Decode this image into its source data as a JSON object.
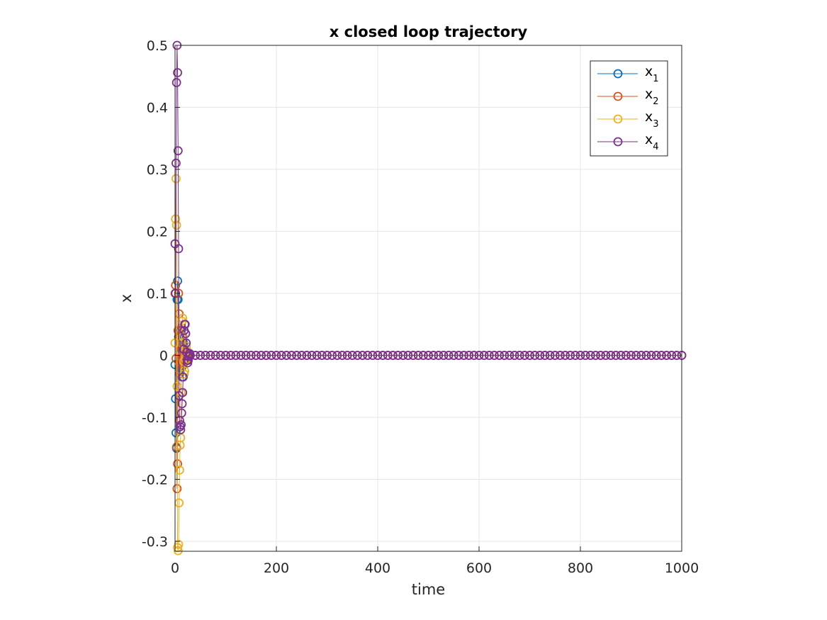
{
  "chart_data": {
    "type": "line",
    "title": "x closed loop trajectory",
    "xlabel": "time",
    "ylabel": "x",
    "xlim": [
      0,
      1000
    ],
    "ylim": [
      -0.316,
      0.5
    ],
    "xticks": [
      "0",
      "200",
      "400",
      "600",
      "800",
      "1000"
    ],
    "yticks": [
      "-0.3",
      "-0.2",
      "-0.1",
      "0",
      "0.1",
      "0.2",
      "0.3",
      "0.4",
      "0.5"
    ],
    "xtick_values": [
      0,
      200,
      400,
      600,
      800,
      1000
    ],
    "ytick_values": [
      -0.3,
      -0.2,
      -0.1,
      0,
      0.1,
      0.2,
      0.3,
      0.4,
      0.5
    ],
    "grid": true,
    "marker": "circle",
    "legend_position": "top-right",
    "steady_state": {
      "value": 0,
      "from": 30,
      "to": 1000,
      "step": 10
    },
    "series": [
      {
        "name": "x",
        "subscript": "1",
        "color": "#0072BD",
        "x": [
          0,
          1,
          2,
          3,
          4,
          5,
          6,
          7,
          8,
          9,
          10,
          11,
          12,
          13,
          14,
          15,
          16,
          17,
          18,
          19,
          20,
          21,
          22,
          23,
          24,
          25,
          26,
          27,
          28,
          29
        ],
        "y": [
          -0.015,
          -0.07,
          -0.125,
          -0.15,
          0.09,
          0.12,
          0.09,
          0.03,
          -0.02,
          -0.03,
          0.02,
          0.04,
          0.01,
          -0.02,
          -0.035,
          -0.015,
          0.01,
          0.02,
          0.01,
          0.0,
          -0.01,
          -0.005,
          0.005,
          0.008,
          0.004,
          0.0,
          -0.003,
          -0.002,
          0.001,
          0.0
        ]
      },
      {
        "name": "x",
        "subscript": "2",
        "color": "#D95319",
        "x": [
          0,
          1,
          2,
          3,
          4,
          5,
          6,
          7,
          8,
          9,
          10,
          11,
          12,
          13,
          14,
          15,
          16,
          17,
          18,
          19,
          20,
          21,
          22,
          23,
          24,
          25,
          26,
          27,
          28,
          29
        ],
        "y": [
          0.1,
          0.113,
          -0.005,
          -0.148,
          -0.215,
          -0.175,
          0.04,
          0.1,
          0.067,
          0.03,
          -0.01,
          -0.025,
          -0.005,
          0.012,
          0.02,
          0.01,
          -0.005,
          -0.012,
          -0.008,
          0.0,
          0.006,
          0.005,
          0.0,
          -0.004,
          -0.003,
          0.0,
          0.002,
          0.001,
          0.0,
          0.0
        ]
      },
      {
        "name": "x",
        "subscript": "3",
        "color": "#EDB120",
        "x": [
          0,
          1,
          2,
          3,
          4,
          5,
          6,
          7,
          8,
          9,
          10,
          11,
          12,
          13,
          14,
          15,
          16,
          17,
          18,
          19,
          20,
          21,
          22,
          23,
          24,
          25,
          26,
          27,
          28,
          29
        ],
        "y": [
          0.02,
          0.22,
          0.285,
          0.21,
          -0.05,
          -0.31,
          -0.315,
          -0.305,
          -0.238,
          -0.185,
          -0.145,
          -0.133,
          -0.06,
          0.02,
          0.055,
          0.06,
          0.03,
          -0.01,
          -0.03,
          -0.025,
          -0.005,
          0.01,
          0.015,
          0.008,
          -0.002,
          -0.006,
          -0.004,
          0.0,
          0.002,
          0.0
        ]
      },
      {
        "name": "x",
        "subscript": "4",
        "color": "#7E2F8E",
        "x": [
          0,
          1,
          2,
          3,
          4,
          5,
          6,
          7,
          8,
          9,
          10,
          11,
          12,
          13,
          14,
          15,
          16,
          17,
          18,
          19,
          20,
          21,
          22,
          23,
          24,
          25,
          26,
          27,
          28,
          29
        ],
        "y": [
          0.18,
          0.1,
          0.31,
          0.44,
          0.5,
          0.456,
          0.33,
          0.172,
          -0.065,
          -0.105,
          -0.115,
          -0.12,
          -0.112,
          -0.093,
          -0.078,
          -0.06,
          -0.035,
          0.01,
          0.04,
          0.05,
          0.05,
          0.035,
          0.02,
          0.005,
          -0.008,
          -0.012,
          -0.008,
          -0.002,
          0.002,
          0.003
        ]
      }
    ]
  }
}
